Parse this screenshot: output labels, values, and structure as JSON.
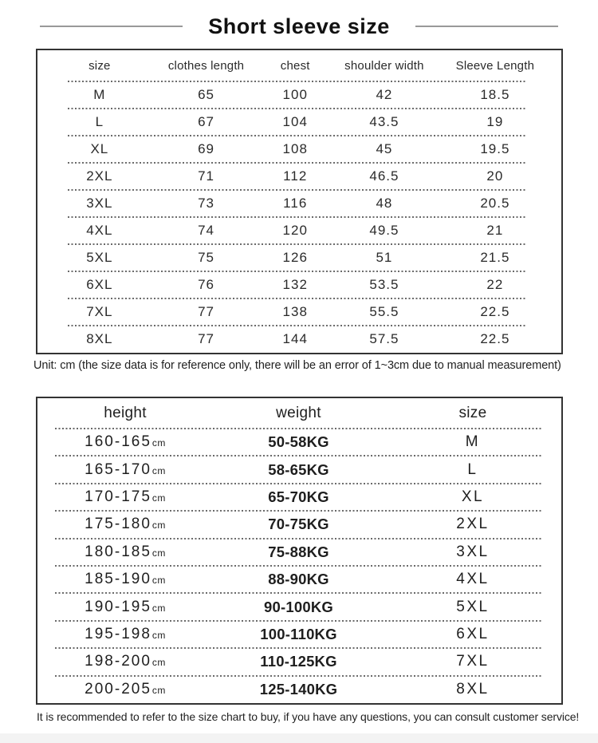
{
  "page": {
    "title": "Short sleeve size",
    "unit_note": "Unit: cm (the size data is for reference only, there will be an error of 1~3cm due to manual measurement)",
    "footer_note": "It is recommended to refer to the size chart to buy, if you have any questions, you can consult customer service!"
  },
  "size_table": {
    "headers": [
      "size",
      "clothes length",
      "chest",
      "shoulder width",
      "Sleeve Length"
    ],
    "rows": [
      [
        "M",
        "65",
        "100",
        "42",
        "18.5"
      ],
      [
        "L",
        "67",
        "104",
        "43.5",
        "19"
      ],
      [
        "XL",
        "69",
        "108",
        "45",
        "19.5"
      ],
      [
        "2XL",
        "71",
        "112",
        "46.5",
        "20"
      ],
      [
        "3XL",
        "73",
        "116",
        "48",
        "20.5"
      ],
      [
        "4XL",
        "74",
        "120",
        "49.5",
        "21"
      ],
      [
        "5XL",
        "75",
        "126",
        "51",
        "21.5"
      ],
      [
        "6XL",
        "76",
        "132",
        "53.5",
        "22"
      ],
      [
        "7XL",
        "77",
        "138",
        "55.5",
        "22.5"
      ],
      [
        "8XL",
        "77",
        "144",
        "57.5",
        "22.5"
      ]
    ]
  },
  "fit_table": {
    "headers": [
      "height",
      "weight",
      "size"
    ],
    "rows": [
      {
        "height": "160-165",
        "unit": "cm",
        "weight": "50-58KG",
        "size": "M"
      },
      {
        "height": "165-170",
        "unit": "cm",
        "weight": "58-65KG",
        "size": "L"
      },
      {
        "height": "170-175",
        "unit": "cm",
        "weight": "65-70KG",
        "size": "XL"
      },
      {
        "height": "175-180",
        "unit": "cm",
        "weight": "70-75KG",
        "size": "2XL"
      },
      {
        "height": "180-185",
        "unit": "cm",
        "weight": "75-88KG",
        "size": "3XL"
      },
      {
        "height": "185-190",
        "unit": "cm",
        "weight": "88-90KG",
        "size": "4XL"
      },
      {
        "height": "190-195",
        "unit": "cm",
        "weight": "90-100KG",
        "size": "5XL"
      },
      {
        "height": "195-198",
        "unit": "cm",
        "weight": "100-110KG",
        "size": "6XL"
      },
      {
        "height": "198-200",
        "unit": "cm",
        "weight": "110-125KG",
        "size": "7XL"
      },
      {
        "height": "200-205",
        "unit": "cm",
        "weight": "125-140KG",
        "size": "8XL"
      }
    ]
  },
  "colors": {
    "text": "#222222",
    "table_border": "#333333",
    "dashed_separator": "#6a6a6a",
    "title_line": "#999999",
    "footer_strip": "#f3f3f3",
    "background": "#ffffff"
  }
}
